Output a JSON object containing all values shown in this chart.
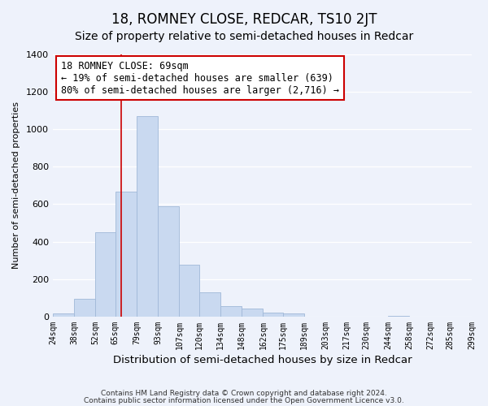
{
  "title": "18, ROMNEY CLOSE, REDCAR, TS10 2JT",
  "subtitle": "Size of property relative to semi-detached houses in Redcar",
  "bar_edges": [
    24,
    38,
    52,
    65,
    79,
    93,
    107,
    120,
    134,
    148,
    162,
    175,
    189,
    203,
    217,
    230,
    244,
    258,
    272,
    285,
    299
  ],
  "bar_heights": [
    15,
    95,
    450,
    665,
    1070,
    590,
    275,
    130,
    55,
    45,
    20,
    15,
    0,
    0,
    0,
    0,
    5,
    0,
    0,
    0,
    0
  ],
  "bar_color": "#c9d9f0",
  "bar_edgecolor": "#a0b8d8",
  "marker_x": 69,
  "marker_color": "#cc0000",
  "annotation_title": "18 ROMNEY CLOSE: 69sqm",
  "annotation_line1": "← 19% of semi-detached houses are smaller (639)",
  "annotation_line2": "80% of semi-detached houses are larger (2,716) →",
  "xlabel": "Distribution of semi-detached houses by size in Redcar",
  "ylabel": "Number of semi-detached properties",
  "ylim": [
    0,
    1400
  ],
  "yticks": [
    0,
    200,
    400,
    600,
    800,
    1000,
    1200,
    1400
  ],
  "xlim": [
    24,
    299
  ],
  "xtick_labels": [
    "24sqm",
    "38sqm",
    "52sqm",
    "65sqm",
    "79sqm",
    "93sqm",
    "107sqm",
    "120sqm",
    "134sqm",
    "148sqm",
    "162sqm",
    "175sqm",
    "189sqm",
    "203sqm",
    "217sqm",
    "230sqm",
    "244sqm",
    "258sqm",
    "272sqm",
    "285sqm",
    "299sqm"
  ],
  "footnote1": "Contains HM Land Registry data © Crown copyright and database right 2024.",
  "footnote2": "Contains public sector information licensed under the Open Government Licence v3.0.",
  "background_color": "#eef2fb",
  "plot_bg_color": "#eef2fb",
  "title_fontsize": 12,
  "subtitle_fontsize": 10,
  "annotation_box_color": "#ffffff",
  "annotation_box_edgecolor": "#cc0000",
  "grid_color": "#ffffff",
  "annotation_fontsize": 8.5
}
